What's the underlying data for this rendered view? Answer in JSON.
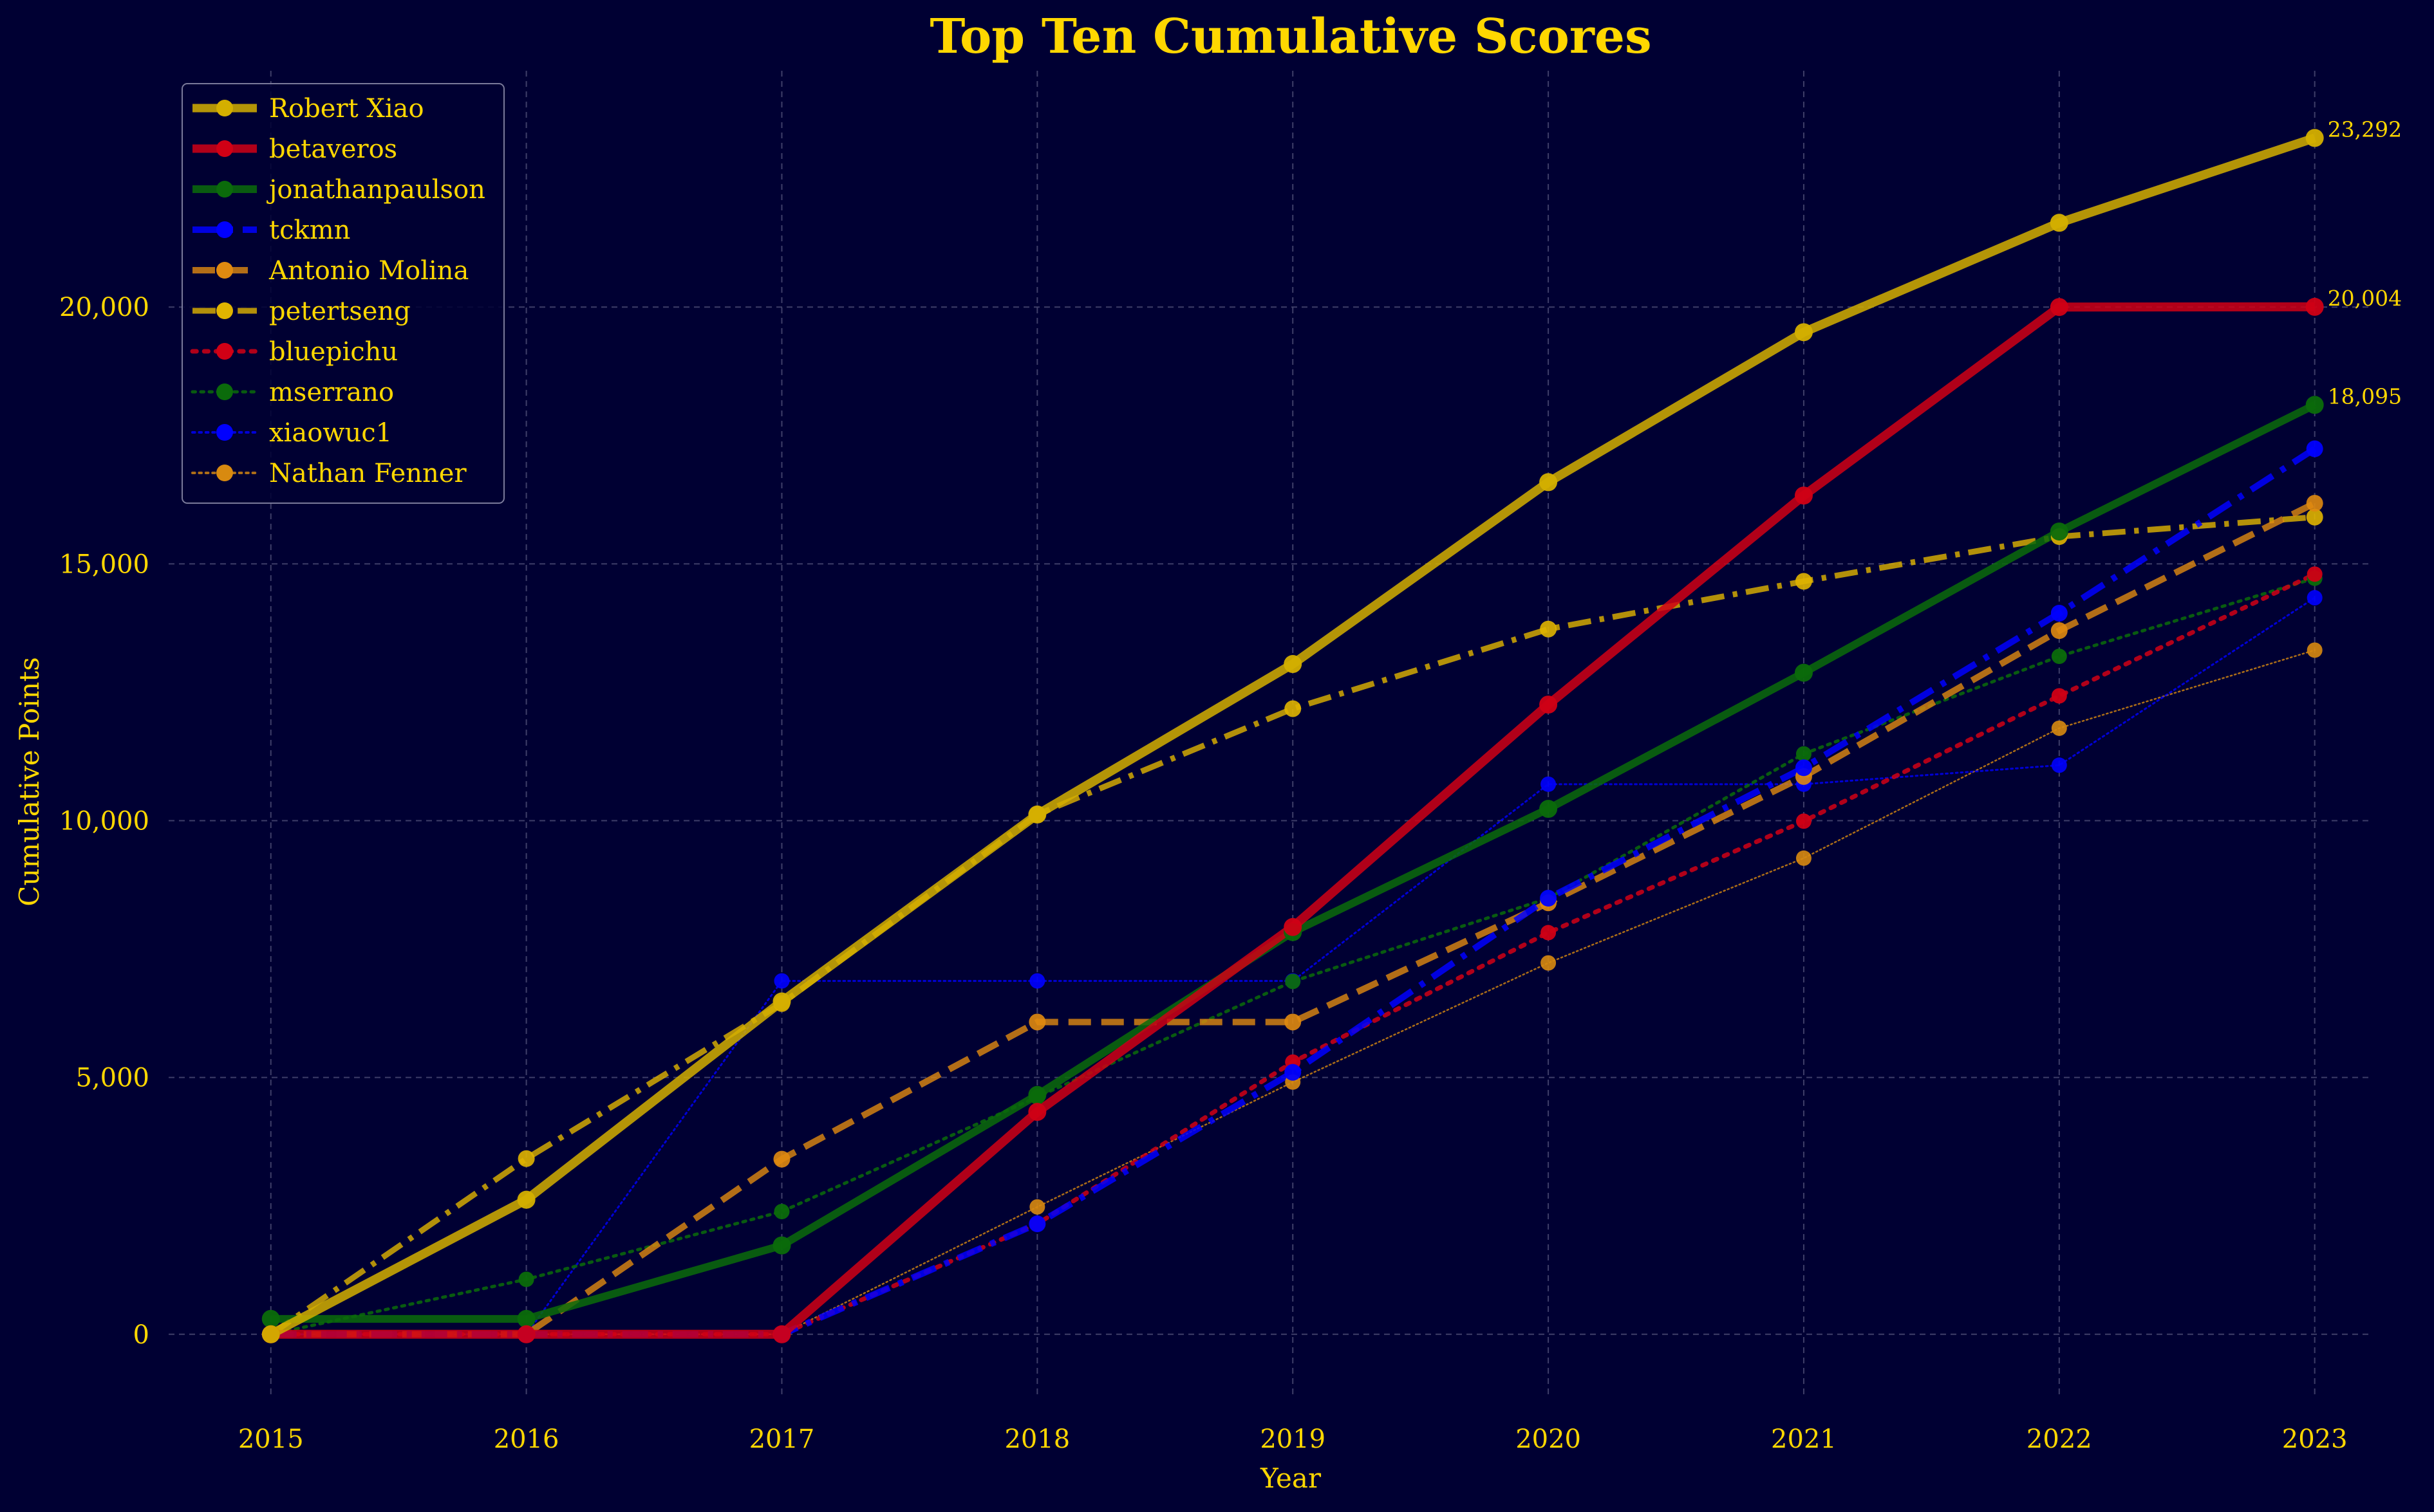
{
  "chart_data": {
    "type": "line",
    "title": "Top Ten Cumulative Scores",
    "xlabel": "Year",
    "ylabel": "Cumulative Points",
    "x": [
      2015,
      2016,
      2017,
      2018,
      2019,
      2020,
      2021,
      2022,
      2023
    ],
    "xlim": [
      2014.6,
      2023.22
    ],
    "ylim": [
      -1180,
      24600
    ],
    "yticks": [
      0,
      5000,
      10000,
      15000,
      20000
    ],
    "ytick_labels": [
      "0",
      "5,000",
      "10,000",
      "15,000",
      "20,000"
    ],
    "grid": true,
    "legend_position": "upper-left",
    "end_labels": [
      {
        "series": "Robert Xiao",
        "text": "23,292"
      },
      {
        "series": "betaveros",
        "text": "20,004"
      },
      {
        "series": "jonathanpaulson",
        "text": "18,095"
      }
    ],
    "series": [
      {
        "name": "Robert Xiao",
        "color": "#D4AF00",
        "style": "solid",
        "width": 14,
        "opacity": 0.85,
        "values": [
          0,
          2620,
          6480,
          10120,
          13050,
          16590,
          19510,
          21640,
          23292
        ]
      },
      {
        "name": "betaveros",
        "color": "#D00015",
        "style": "solid",
        "width": 14,
        "opacity": 0.85,
        "values": [
          0,
          0,
          0,
          4330,
          7930,
          12260,
          16330,
          20000,
          20004
        ]
      },
      {
        "name": "jonathanpaulson",
        "color": "#0B6B0B",
        "style": "solid",
        "width": 12,
        "opacity": 0.85,
        "values": [
          300,
          300,
          1730,
          4660,
          7830,
          10230,
          12880,
          15630,
          18095
        ]
      },
      {
        "name": "tckmn",
        "color": "#0000FF",
        "style": "dashdot",
        "width": 10,
        "opacity": 0.85,
        "values": [
          0,
          0,
          0,
          2150,
          5100,
          8490,
          11030,
          14040,
          17240
        ]
      },
      {
        "name": "Antonio Molina",
        "color": "#E08A10",
        "style": "dashed",
        "width": 10,
        "opacity": 0.8,
        "values": [
          0,
          0,
          3410,
          6080,
          6080,
          8400,
          10860,
          13700,
          16180
        ]
      },
      {
        "name": "petertseng",
        "color": "#E0B400",
        "style": "dashdot",
        "width": 9,
        "opacity": 0.8,
        "values": [
          0,
          3420,
          6440,
          10120,
          12180,
          13730,
          14660,
          15530,
          15910
        ]
      },
      {
        "name": "bluepichu",
        "color": "#D00015",
        "style": "dotted",
        "width": 7,
        "opacity": 0.85,
        "values": [
          0,
          0,
          0,
          2150,
          5300,
          7820,
          9990,
          12430,
          14800
        ]
      },
      {
        "name": "mserrano",
        "color": "#0B6B0B",
        "style": "dotted",
        "width": 5,
        "opacity": 0.85,
        "values": [
          0,
          1070,
          2390,
          4620,
          6870,
          8490,
          11300,
          13200,
          14720
        ]
      },
      {
        "name": "xiaowuc1",
        "color": "#0000FF",
        "style": "dotted",
        "width": 3,
        "opacity": 0.8,
        "values": [
          0,
          0,
          6880,
          6880,
          6880,
          10710,
          10710,
          11080,
          14340
        ]
      },
      {
        "name": "Nathan Fenner",
        "color": "#D88A10",
        "style": "dotted",
        "width": 2.5,
        "opacity": 0.8,
        "values": [
          0,
          0,
          0,
          2480,
          4910,
          7230,
          9270,
          11800,
          13320
        ]
      }
    ]
  }
}
